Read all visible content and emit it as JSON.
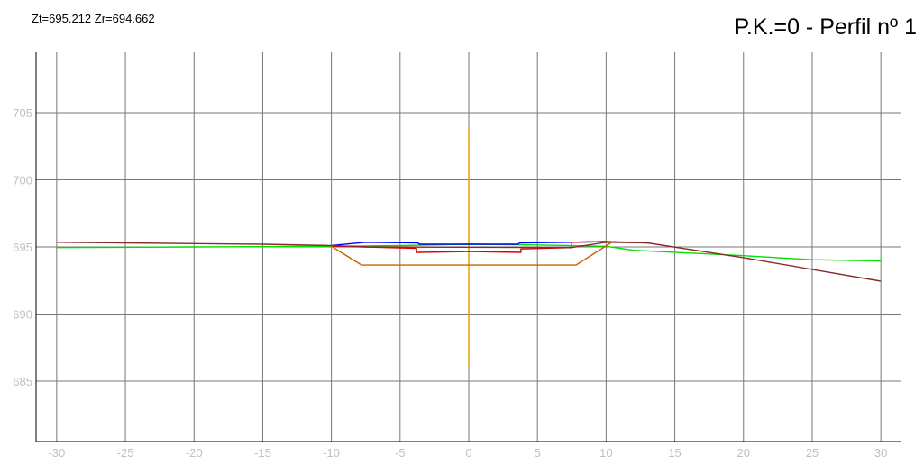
{
  "header": {
    "elevation_readout": "Zt=695.212 Zr=694.662",
    "profile_title": "P.K.=0 - Perfil nº 1"
  },
  "colors": {
    "grid": "#777777",
    "axis": "#000000",
    "tick_label": "#c0c0c0",
    "terrain": "#00e000",
    "pavement": "#0000ff",
    "subgrade": "#e00000",
    "surface": "#8b2a2a",
    "earthwork": "#c86400",
    "centerline": "#e8a000"
  },
  "chart_data": {
    "type": "line",
    "title": "P.K.=0 - Perfil nº 1",
    "xlabel": "",
    "ylabel": "",
    "xlim": [
      -31.5,
      31.5
    ],
    "ylim": [
      680.5,
      709.5
    ],
    "x_ticks": [
      -30,
      -25,
      -20,
      -15,
      -10,
      -5,
      0,
      5,
      10,
      15,
      20,
      25,
      30
    ],
    "y_ticks": [
      685,
      690,
      695,
      700,
      705
    ],
    "grid": true,
    "legend": "none",
    "centerline": {
      "x": 0,
      "y_range": [
        686.2,
        703.8
      ]
    },
    "series": [
      {
        "key": "terrain",
        "points": [
          [
            -30,
            694.95
          ],
          [
            -20,
            695.0
          ],
          [
            -10,
            695.05
          ],
          [
            -5,
            695.1
          ],
          [
            0,
            695.2
          ],
          [
            5,
            695.15
          ],
          [
            10,
            695.05
          ],
          [
            12,
            694.75
          ],
          [
            20,
            694.35
          ],
          [
            25,
            694.05
          ],
          [
            30,
            693.95
          ]
        ]
      },
      {
        "key": "pavement",
        "points": [
          [
            -10,
            695.1
          ],
          [
            -7.5,
            695.35
          ],
          [
            -3.7,
            695.3
          ],
          [
            -3.6,
            695.2
          ],
          [
            3.6,
            695.2
          ],
          [
            3.7,
            695.3
          ],
          [
            7.5,
            695.35
          ],
          [
            10,
            695.4
          ]
        ]
      },
      {
        "key": "subgrade",
        "points": [
          [
            -10,
            695.05
          ],
          [
            -7.5,
            695.0
          ],
          [
            -3.8,
            694.9
          ],
          [
            -3.8,
            694.6
          ],
          [
            0,
            694.66
          ],
          [
            3.8,
            694.6
          ],
          [
            3.8,
            694.85
          ],
          [
            7.5,
            694.95
          ],
          [
            7.5,
            695.35
          ],
          [
            10,
            695.4
          ],
          [
            13,
            695.3
          ]
        ]
      },
      {
        "key": "surface",
        "points": [
          [
            -30,
            695.35
          ],
          [
            -25,
            695.3
          ],
          [
            -20,
            695.25
          ],
          [
            -15,
            695.2
          ],
          [
            -10,
            695.1
          ],
          [
            -7.5,
            695.0
          ],
          [
            7.5,
            694.95
          ],
          [
            10,
            695.35
          ],
          [
            13,
            695.3
          ],
          [
            20,
            694.2
          ],
          [
            30,
            692.45
          ]
        ]
      },
      {
        "key": "earthwork",
        "points": [
          [
            -10,
            695.05
          ],
          [
            -7.8,
            693.65
          ],
          [
            7.8,
            693.65
          ],
          [
            10.5,
            695.4
          ]
        ]
      }
    ]
  }
}
